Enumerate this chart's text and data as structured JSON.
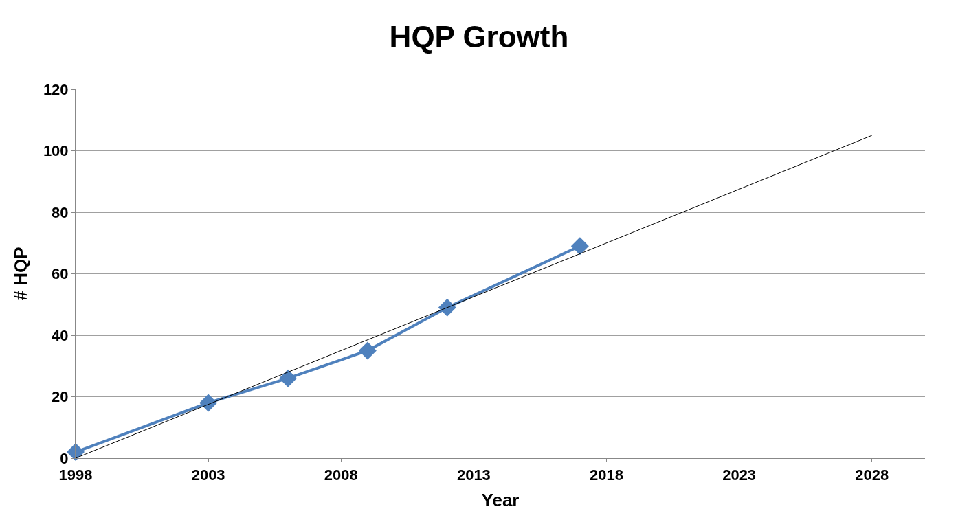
{
  "chart_data": {
    "type": "line",
    "title": "HQP Growth",
    "xlabel": "Year",
    "ylabel": "# HQP",
    "xlim": [
      1998,
      2030
    ],
    "xticks": [
      1998,
      2003,
      2008,
      2013,
      2018,
      2023,
      2028
    ],
    "ylim": [
      0,
      120
    ],
    "yticks": [
      0,
      20,
      40,
      60,
      80,
      100,
      120
    ],
    "grid": "y",
    "marker": "diamond",
    "series": [
      {
        "color": "#4f81bd",
        "x": [
          1998,
          2003,
          2006,
          2009,
          2012,
          2017
        ],
        "values": [
          2,
          18,
          26,
          35,
          49,
          69
        ]
      },
      {
        "type": "line",
        "color": "#000000",
        "marker": "none",
        "x": [
          1998,
          2028
        ],
        "values": [
          0,
          105
        ]
      }
    ]
  }
}
